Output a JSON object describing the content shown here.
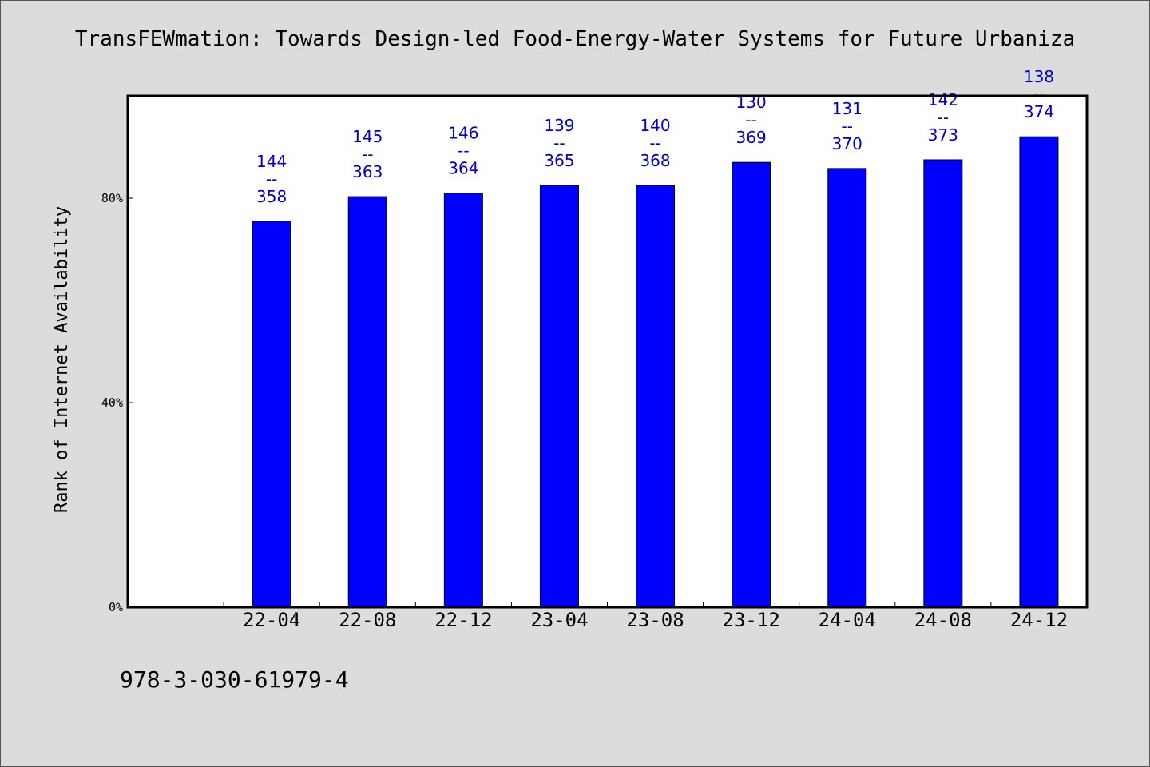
{
  "chart_data": {
    "type": "bar",
    "title": "TransFEWmation: Towards Design-led Food-Energy-Water Systems for Future Urbaniza",
    "xlabel": "",
    "ylabel": "Rank of Internet Availability",
    "categories": [
      "",
      "22-04",
      "22-08",
      "22-12",
      "23-04",
      "23-08",
      "23-12",
      "24-04",
      "24-08",
      "24-12"
    ],
    "values": [
      null,
      75.5,
      80.3,
      81.0,
      82.5,
      82.5,
      87.0,
      85.8,
      87.5,
      92.0
    ],
    "data_labels": [
      null,
      [
        "144",
        "--",
        "358"
      ],
      [
        "145",
        "--",
        "363"
      ],
      [
        "146",
        "--",
        "364"
      ],
      [
        "139",
        "--",
        "365"
      ],
      [
        "140",
        "--",
        "368"
      ],
      [
        "130",
        "--",
        "369"
      ],
      [
        "131",
        "--",
        "370"
      ],
      [
        "142",
        "--",
        "373"
      ],
      [
        "138",
        "--",
        "374"
      ]
    ],
    "y_ticks": [
      0,
      40,
      80
    ],
    "y_tick_labels": [
      "0%",
      "40%",
      "80%"
    ],
    "ylim": [
      0,
      100
    ],
    "grid": false,
    "legend": "none",
    "bar_color": "#0000ff",
    "label_color": "#0000cc"
  },
  "footer": {
    "text": "978-3-030-61979-4"
  }
}
